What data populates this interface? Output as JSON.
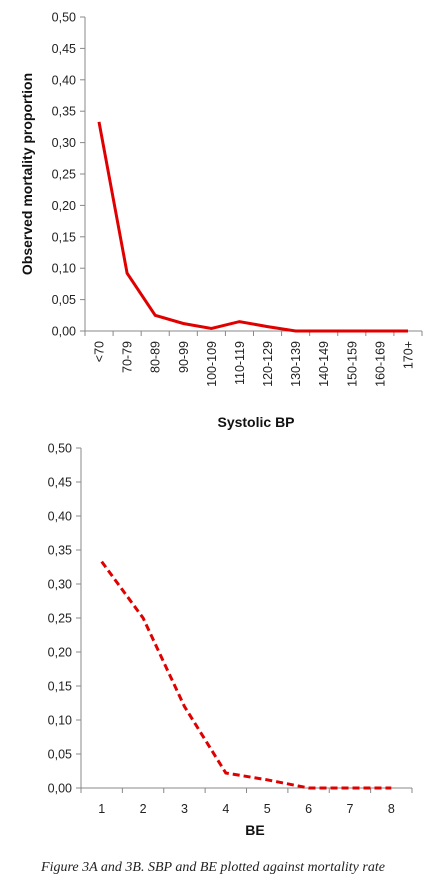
{
  "chart_data": [
    {
      "type": "line",
      "xlabel": "Systolic BP",
      "ylabel": "Observed mortality proportion",
      "ylim": [
        0,
        0.5
      ],
      "y_ticks": [
        "0,00",
        "0,05",
        "0,10",
        "0,15",
        "0,20",
        "0,25",
        "0,30",
        "0,35",
        "0,40",
        "0,45",
        "0,50"
      ],
      "categories": [
        "<70",
        "70-79",
        "80-89",
        "90-99",
        "100-109",
        "110-119",
        "120-129",
        "130-139",
        "140-149",
        "150-159",
        "160-169",
        "170+"
      ],
      "series": [
        {
          "values": [
            0.333,
            0.092,
            0.025,
            0.012,
            0.004,
            0.015,
            0.007,
            0.0,
            0.0,
            0.0,
            0.0,
            0.0
          ],
          "color": "#e00000",
          "style": "solid"
        }
      ],
      "grid": false
    },
    {
      "type": "line",
      "xlabel": "BE",
      "ylabel": "",
      "ylim": [
        0,
        0.5
      ],
      "y_ticks": [
        "0,00",
        "0,05",
        "0,10",
        "0,15",
        "0,20",
        "0,25",
        "0,30",
        "0,35",
        "0,40",
        "0,45",
        "0,50"
      ],
      "categories": [
        "1",
        "2",
        "3",
        "4",
        "5",
        "6",
        "7",
        "8"
      ],
      "series": [
        {
          "values": [
            0.333,
            0.25,
            0.12,
            0.022,
            0.012,
            0.0,
            0.0,
            0.0
          ],
          "color": "#e00000",
          "style": "dashed"
        }
      ],
      "grid": false
    }
  ],
  "caption": "Figure 3A and 3B. SBP and BE plotted against mortality rate"
}
